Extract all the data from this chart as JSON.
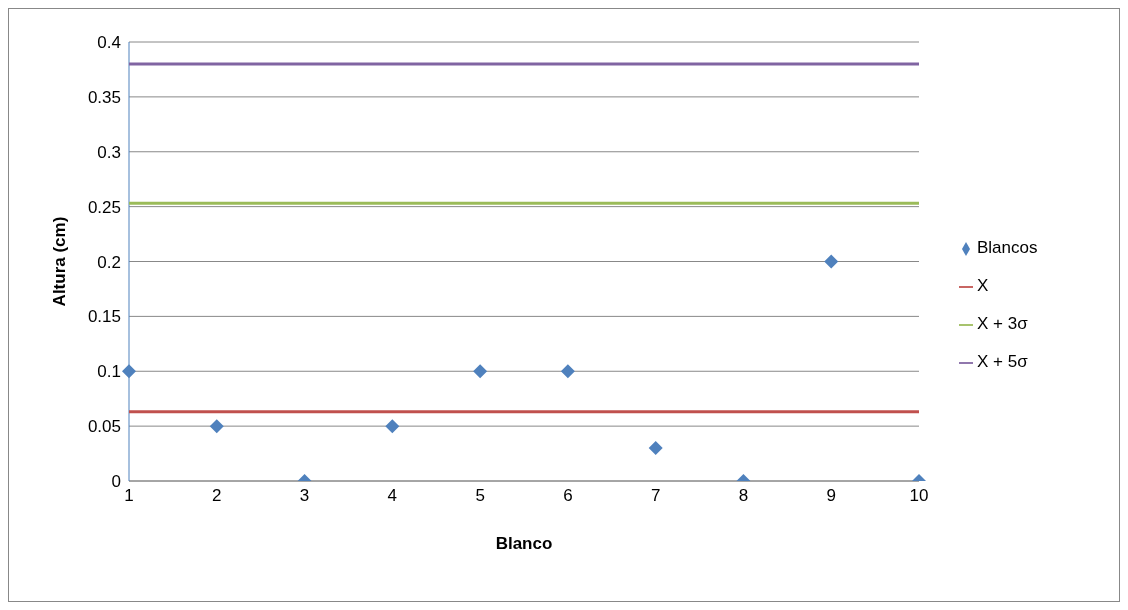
{
  "chart_data": {
    "type": "scatter",
    "xlabel": "Blanco",
    "ylabel": "Altura (cm)",
    "x": [
      1,
      2,
      3,
      4,
      5,
      6,
      7,
      8,
      9,
      10
    ],
    "series": [
      {
        "name": "Blancos",
        "type": "scatter",
        "color": "#4f81bd",
        "marker": "diamond",
        "values": [
          0.1,
          0.05,
          0,
          0.05,
          0.1,
          0.1,
          0.03,
          0,
          0.2,
          0
        ]
      },
      {
        "name": "X",
        "type": "line",
        "color": "#c0504d",
        "marker": "none",
        "values": [
          0.063,
          0.063,
          0.063,
          0.063,
          0.063,
          0.063,
          0.063,
          0.063,
          0.063,
          0.063
        ]
      },
      {
        "name": "X + 3σ",
        "type": "line",
        "color": "#9bbb59",
        "marker": "none",
        "values": [
          0.253,
          0.253,
          0.253,
          0.253,
          0.253,
          0.253,
          0.253,
          0.253,
          0.253,
          0.253
        ]
      },
      {
        "name": "X + 5σ",
        "type": "line",
        "color": "#8064a2",
        "marker": "none",
        "values": [
          0.38,
          0.38,
          0.38,
          0.38,
          0.38,
          0.38,
          0.38,
          0.38,
          0.38,
          0.38
        ]
      }
    ],
    "xlim": [
      1,
      10
    ],
    "xticks": [
      1,
      2,
      3,
      4,
      5,
      6,
      7,
      8,
      9,
      10
    ],
    "ylim": [
      0,
      0.4
    ],
    "yticks": [
      0,
      0.05,
      0.1,
      0.15,
      0.2,
      0.25,
      0.3,
      0.35,
      0.4
    ],
    "grid": "y",
    "legend": "right"
  }
}
